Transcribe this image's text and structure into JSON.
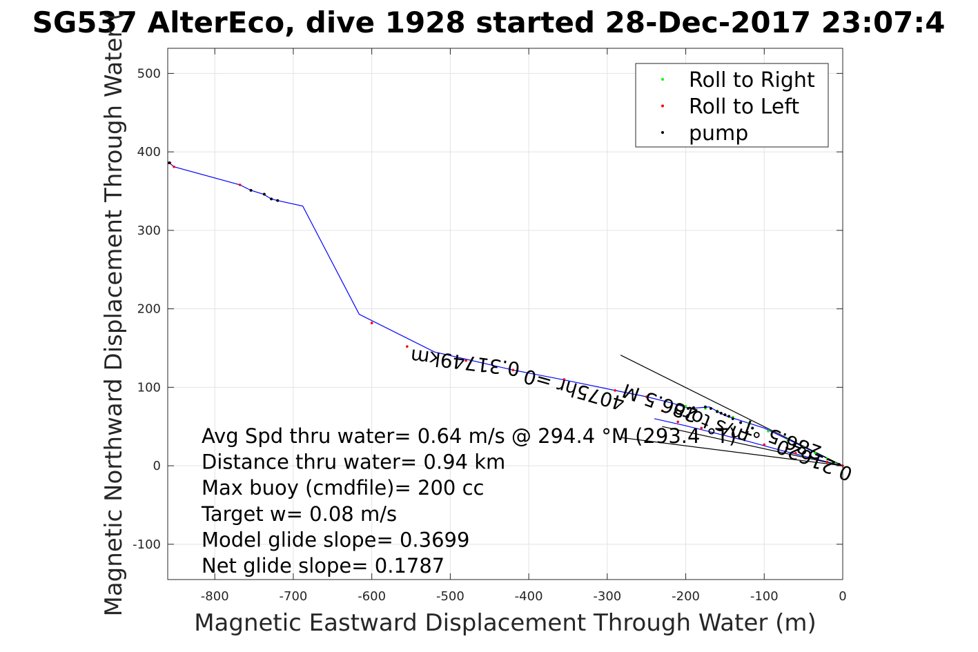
{
  "chart_data": {
    "type": "line",
    "title": "SG537 AlterEco, dive 1928 started 28-Dec-2017 23:07:4",
    "xlabel": "Magnetic Eastward Displacement Through Water (m)",
    "ylabel": "Magnetic Northward Displacement Through Water (",
    "xlim": [
      -860,
      0
    ],
    "ylim": [
      -145,
      532
    ],
    "xticks": [
      -800,
      -700,
      -600,
      -500,
      -400,
      -300,
      -200,
      -100,
      0
    ],
    "yticks": [
      -100,
      0,
      100,
      200,
      300,
      400,
      500
    ],
    "grid": true,
    "legend": {
      "placement": "top-right",
      "entries": [
        {
          "label": "Roll to Right",
          "color": "#00ff00"
        },
        {
          "label": "Roll to Left",
          "color": "#ff0000"
        },
        {
          "label": "pump",
          "color": "#000000"
        }
      ]
    },
    "series": [
      {
        "color": "#0000ff",
        "x": [
          -858,
          -852,
          -768,
          -754,
          -738,
          -728,
          -720,
          -688,
          -616,
          -520,
          -420,
          -358,
          -290,
          -250,
          -218,
          -195,
          -170,
          -150,
          -100,
          -50,
          0
        ],
        "y": [
          386,
          381,
          358,
          351,
          346,
          340,
          338,
          331,
          193,
          145,
          122,
          110,
          96,
          88,
          80,
          73,
          75,
          64,
          48,
          24,
          0
        ]
      },
      {
        "color": "#0000ff",
        "x": [
          -240,
          -200,
          -160,
          -120,
          -80,
          -40,
          0
        ],
        "y": [
          60,
          51,
          41,
          31,
          20,
          10,
          0
        ]
      }
    ],
    "roll_right_points": {
      "x": [
        -200,
        -190,
        -175,
        -160,
        -140,
        -120,
        -95,
        -70,
        -50,
        -35,
        -20,
        -10
      ],
      "y": [
        76,
        74,
        73,
        70,
        62,
        54,
        44,
        33,
        23,
        16,
        9,
        4
      ]
    },
    "roll_left_points": {
      "x": [
        -857,
        -852,
        -768,
        -600,
        -555,
        -480,
        -420,
        -355,
        -290,
        -250,
        -230,
        -210,
        -180,
        -140,
        -100,
        -60,
        -20,
        0
      ],
      "y": [
        386,
        381,
        358,
        182,
        152,
        134,
        122,
        110,
        96,
        88,
        70,
        56,
        48,
        38,
        27,
        16,
        5,
        0
      ]
    },
    "pump_points": {
      "x": [
        -858,
        -754,
        -737,
        -728,
        -720,
        -197,
        -190,
        -175,
        -168,
        -160,
        -155,
        -150,
        -145,
        -140,
        -130,
        -115
      ],
      "y": [
        386,
        351,
        346,
        340,
        338,
        73,
        74,
        75,
        73,
        69,
        67,
        65,
        63,
        60,
        55,
        48
      ]
    },
    "reference_lines": [
      {
        "x": [
          -283,
          0
        ],
        "y": [
          141,
          0
        ]
      },
      {
        "x": [
          -283,
          0
        ],
        "y": [
          36,
          0
        ]
      },
      {
        "x": [
          -230,
          0
        ],
        "y": [
          50,
          0
        ]
      }
    ],
    "annotations": [
      {
        "text": "0.31749km",
        "x": -480,
        "y": 140,
        "angle": 187
      },
      {
        "text": "4075hr =0",
        "x": -340,
        "y": 105,
        "angle": 196
      },
      {
        "text": "286.5 M",
        "x": -230,
        "y": 88,
        "angle": 200
      },
      {
        "text": "m/s toro",
        "x": -165,
        "y": 62,
        "angle": 202
      },
      {
        "text": "0.21620",
        "x": -33,
        "y": 15,
        "angle": 202
      },
      {
        "text": "286.5 °T",
        "x": -75,
        "y": 42,
        "angle": 200
      }
    ],
    "notes": [
      "Avg Spd thru water=  0.64 m/s @ 294.4 °M (293.4 °T)",
      "Distance thru water=  0.94 km",
      "Max buoy (cmdfile)= 200 cc",
      "Target w= 0.08 m/s",
      "Model glide slope= 0.3699",
      "Net glide slope= 0.1787"
    ]
  }
}
